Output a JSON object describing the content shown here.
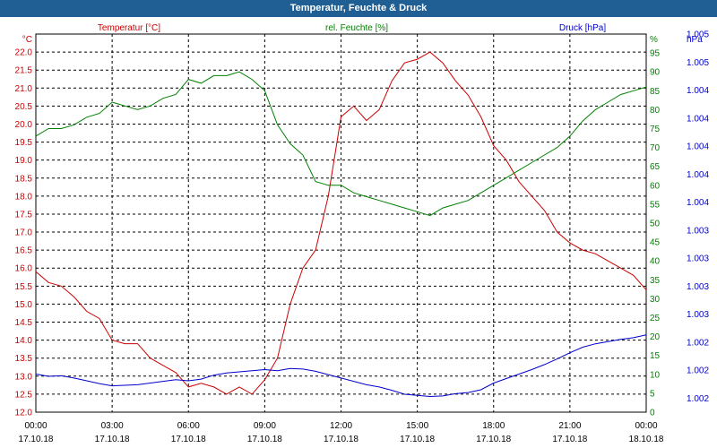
{
  "window": {
    "title": "Temperatur, Feuchte & Druck"
  },
  "colors": {
    "temperature": "#cc0000",
    "humidity": "#008000",
    "pressure": "#0000cc",
    "titlebar": "#1f5f93"
  },
  "chart_data": {
    "type": "line",
    "grid": true,
    "series_headers": {
      "temperature": "Temperatur [°C]",
      "humidity": "rel. Feuchte [%]",
      "pressure": "Druck [hPa]"
    },
    "axes": {
      "left": {
        "unit": "°C",
        "ylim": [
          12.0,
          22.5
        ],
        "ticks": [
          "12.0",
          "12.5",
          "13.0",
          "13.5",
          "14.0",
          "14.5",
          "15.0",
          "15.5",
          "16.0",
          "16.5",
          "17.0",
          "17.5",
          "18.0",
          "18.5",
          "19.0",
          "19.5",
          "20.0",
          "20.5",
          "21.0",
          "21.5",
          "22.0"
        ]
      },
      "right_humidity": {
        "unit": "%",
        "ylim": [
          0,
          100
        ],
        "ticks": [
          "0",
          "5",
          "10",
          "15",
          "20",
          "25",
          "30",
          "35",
          "40",
          "45",
          "50",
          "55",
          "60",
          "65",
          "70",
          "75",
          "80",
          "85",
          "90",
          "95"
        ]
      },
      "right_pressure": {
        "unit": "hPa",
        "ticks": [
          "1.002",
          "1.002",
          "1.002",
          "1.003",
          "1.003",
          "1.003",
          "1.003",
          "1.004",
          "1.004",
          "1.004",
          "1.004",
          "1.004",
          "1.005",
          "1.005"
        ]
      }
    },
    "x_ticks": [
      {
        "time": "00:00",
        "date": "17.10.18"
      },
      {
        "time": "03:00",
        "date": "17.10.18"
      },
      {
        "time": "06:00",
        "date": "17.10.18"
      },
      {
        "time": "09:00",
        "date": "17.10.18"
      },
      {
        "time": "12:00",
        "date": "17.10.18"
      },
      {
        "time": "15:00",
        "date": "17.10.18"
      },
      {
        "time": "18:00",
        "date": "17.10.18"
      },
      {
        "time": "21:00",
        "date": "17.10.18"
      },
      {
        "time": "00:00",
        "date": "18.10.18"
      }
    ],
    "x_hours": [
      0,
      0.5,
      1,
      1.5,
      2,
      2.5,
      3,
      3.5,
      4,
      4.5,
      5,
      5.5,
      6,
      6.5,
      7,
      7.5,
      8,
      8.5,
      9,
      9.5,
      10,
      10.5,
      11,
      11.5,
      12,
      12.5,
      13,
      13.5,
      14,
      14.5,
      15,
      15.5,
      16,
      16.5,
      17,
      17.5,
      18,
      18.5,
      19,
      19.5,
      20,
      20.5,
      21,
      21.5,
      22,
      22.5,
      23,
      23.5,
      24
    ],
    "series": [
      {
        "key": "temperature",
        "values": [
          15.9,
          15.6,
          15.5,
          15.2,
          14.8,
          14.6,
          14.0,
          13.9,
          13.9,
          13.5,
          13.3,
          13.1,
          12.7,
          12.8,
          12.7,
          12.5,
          12.7,
          12.5,
          12.9,
          13.5,
          15.0,
          16.0,
          16.5,
          18.0,
          20.2,
          20.5,
          20.1,
          20.4,
          21.2,
          21.7,
          21.8,
          22.0,
          21.7,
          21.2,
          20.8,
          20.2,
          19.4,
          19.0,
          18.4,
          18.0,
          17.6,
          17.0,
          16.7,
          16.5,
          16.4,
          16.2,
          16.0,
          15.8,
          15.4
        ]
      },
      {
        "key": "humidity",
        "values": [
          73,
          75,
          75,
          76,
          78,
          79,
          82,
          81,
          80,
          81,
          83,
          84,
          88,
          87,
          89,
          89,
          90,
          88,
          85,
          76,
          71,
          68,
          61,
          60,
          60,
          58,
          57,
          56,
          55,
          54,
          53,
          52,
          54,
          55,
          56,
          58,
          60,
          62,
          64,
          66,
          68,
          70,
          73,
          77,
          80,
          82,
          84,
          85,
          86
        ]
      },
      {
        "key": "pressure",
        "values": [
          0.68,
          0.64,
          0.65,
          0.61,
          0.56,
          0.51,
          0.47,
          0.48,
          0.49,
          0.52,
          0.55,
          0.58,
          0.56,
          0.59,
          0.66,
          0.7,
          0.72,
          0.74,
          0.76,
          0.74,
          0.78,
          0.77,
          0.73,
          0.67,
          0.61,
          0.55,
          0.49,
          0.45,
          0.39,
          0.32,
          0.3,
          0.28,
          0.29,
          0.33,
          0.35,
          0.4,
          0.52,
          0.6,
          0.68,
          0.76,
          0.85,
          0.95,
          1.06,
          1.16,
          1.22,
          1.26,
          1.3,
          1.33,
          1.38
        ]
      }
    ]
  }
}
